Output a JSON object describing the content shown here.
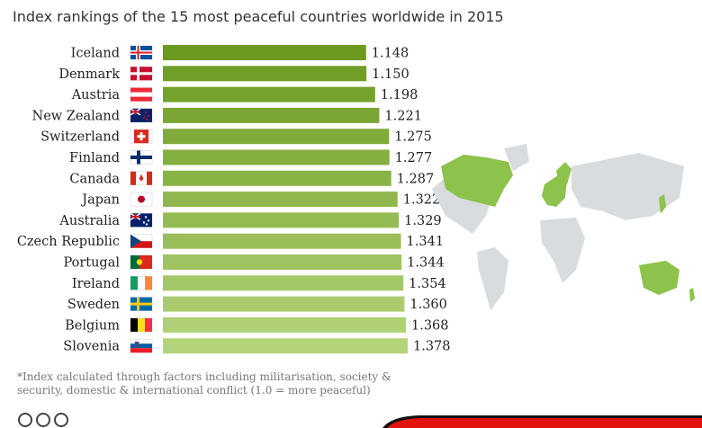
{
  "subtitle": "Index rankings of the 15 most peaceful countries worldwide in 2015",
  "footnote": "*Index calculated through factors including militarisation, society & security, domestic & international conflict (1.0 = more peaceful)",
  "colors": {
    "bar_dark": "#6b9a1f",
    "bar_light": "#b4d47a",
    "map_highlight": "#8dc24c",
    "map_base": "#d9dcdf"
  },
  "chart_data": {
    "type": "bar",
    "orientation": "horizontal",
    "title": "",
    "subtitle": "Index rankings of the 15 most peaceful countries worldwide in 2015",
    "categories": [
      "Iceland",
      "Denmark",
      "Austria",
      "New Zealand",
      "Switzerland",
      "Finland",
      "Canada",
      "Japan",
      "Australia",
      "Czech Republic",
      "Portugal",
      "Ireland",
      "Sweden",
      "Belgium",
      "Slovenia"
    ],
    "values": [
      1.148,
      1.15,
      1.198,
      1.221,
      1.275,
      1.277,
      1.287,
      1.322,
      1.329,
      1.341,
      1.344,
      1.354,
      1.36,
      1.368,
      1.378
    ],
    "value_labels": [
      "1.148",
      "1.150",
      "1.198",
      "1.221",
      "1.275",
      "1.277",
      "1.287",
      "1.322",
      "1.329",
      "1.341",
      "1.344",
      "1.354",
      "1.360",
      "1.368",
      "1.378"
    ],
    "flags": [
      "iceland-flag",
      "denmark-flag",
      "austria-flag",
      "new-zealand-flag",
      "switzerland-flag",
      "finland-flag",
      "canada-flag",
      "japan-flag",
      "australia-flag",
      "czech-republic-flag",
      "portugal-flag",
      "ireland-flag",
      "sweden-flag",
      "belgium-flag",
      "slovenia-flag"
    ],
    "xlim": [
      0,
      1.378
    ],
    "xlabel": "",
    "ylabel": "",
    "grid": false,
    "legend": "none"
  },
  "map": {
    "highlighted_regions": [
      "Canada",
      "Europe",
      "Japan",
      "Australia",
      "New Zealand"
    ]
  }
}
